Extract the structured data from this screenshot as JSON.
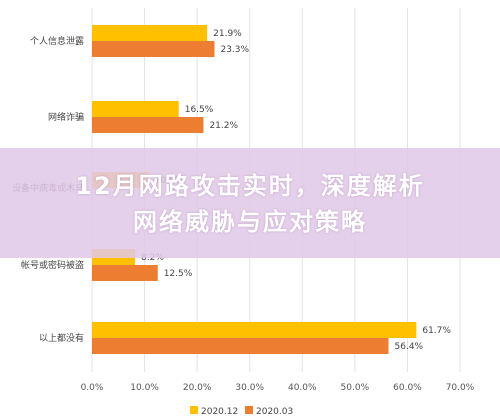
{
  "chart_data": {
    "type": "bar",
    "orientation": "horizontal",
    "categories": [
      "个人信息泄露",
      "网络诈骗",
      "设备中病毒或木马",
      "帐号或密码被盗",
      "以上都没有"
    ],
    "series": [
      {
        "name": "2020.12",
        "color": "#FFC000",
        "values": [
          21.9,
          16.5,
          10.8,
          8.2,
          61.7
        ],
        "labels": [
          "21.9%",
          "16.5%",
          "10.8%",
          "8.2%",
          "61.7%"
        ]
      },
      {
        "name": "2020.03",
        "color": "#ED7D31",
        "values": [
          23.3,
          21.2,
          null,
          12.5,
          56.4
        ],
        "labels": [
          "23.3%",
          "21.2%",
          "",
          "12.5%",
          "56.4%"
        ]
      }
    ],
    "xlim": [
      0,
      70
    ],
    "xticks": [
      "0.0%",
      "10.0%",
      "20.0%",
      "30.0%",
      "40.0%",
      "50.0%",
      "60.0%",
      "70.0%"
    ],
    "grid": true,
    "legend_position": "bottom"
  },
  "overlay": {
    "headline_line1": "12月网路攻击实时，深度解析",
    "headline_line2": "网络威胁与应对策略"
  }
}
